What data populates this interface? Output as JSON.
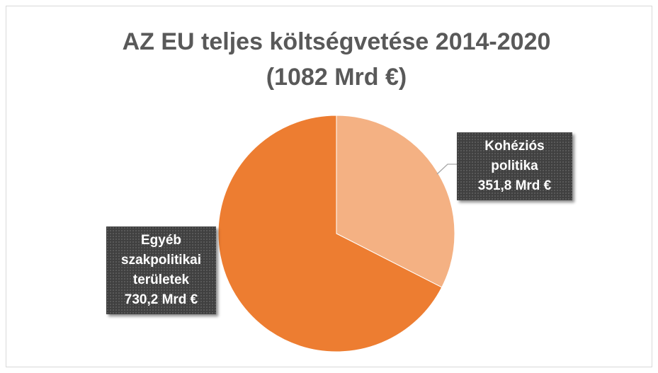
{
  "chart_data": {
    "type": "pie",
    "title": [
      "AZ EU teljes költségvetése 2014-2020",
      "(1082 Mrd €)"
    ],
    "categories": [
      "Kohéziós politika",
      "Egyéb szakpolitikai területek"
    ],
    "values": [
      351.8,
      730.2
    ],
    "value_labels": [
      "351,8 Mrd €",
      "730,2 Mrd €"
    ],
    "colors": [
      "#f4b183",
      "#ed7d31"
    ]
  }
}
